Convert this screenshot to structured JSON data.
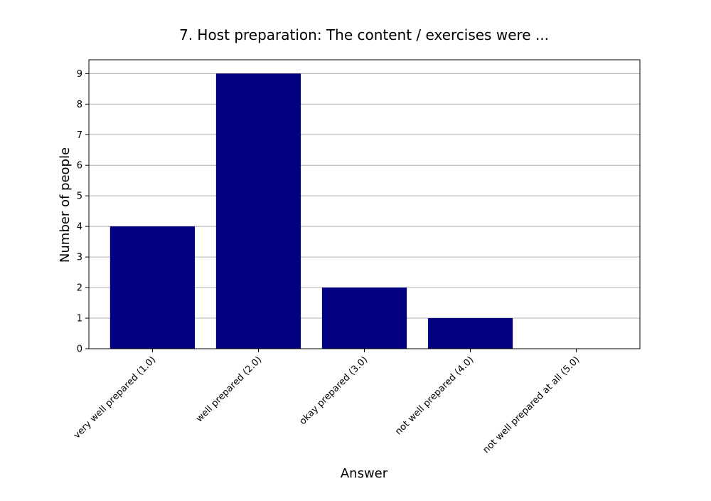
{
  "chart_data": {
    "type": "bar",
    "title": "7. Host preparation: The content / exercises were ...",
    "xlabel": "Answer",
    "ylabel": "Number of people",
    "categories": [
      "very well prepared (1.0)",
      "well prepared (2.0)",
      "okay prepared (3.0)",
      "not well prepared (4.0)",
      "not well prepared at all (5.0)"
    ],
    "values": [
      4,
      9,
      2,
      1,
      0
    ],
    "ylim": [
      0,
      9.45
    ],
    "yticks": [
      0,
      1,
      2,
      3,
      4,
      5,
      6,
      7,
      8,
      9
    ],
    "grid": "y",
    "bar_color": "#000080",
    "grid_color": "#b0b0b0"
  }
}
